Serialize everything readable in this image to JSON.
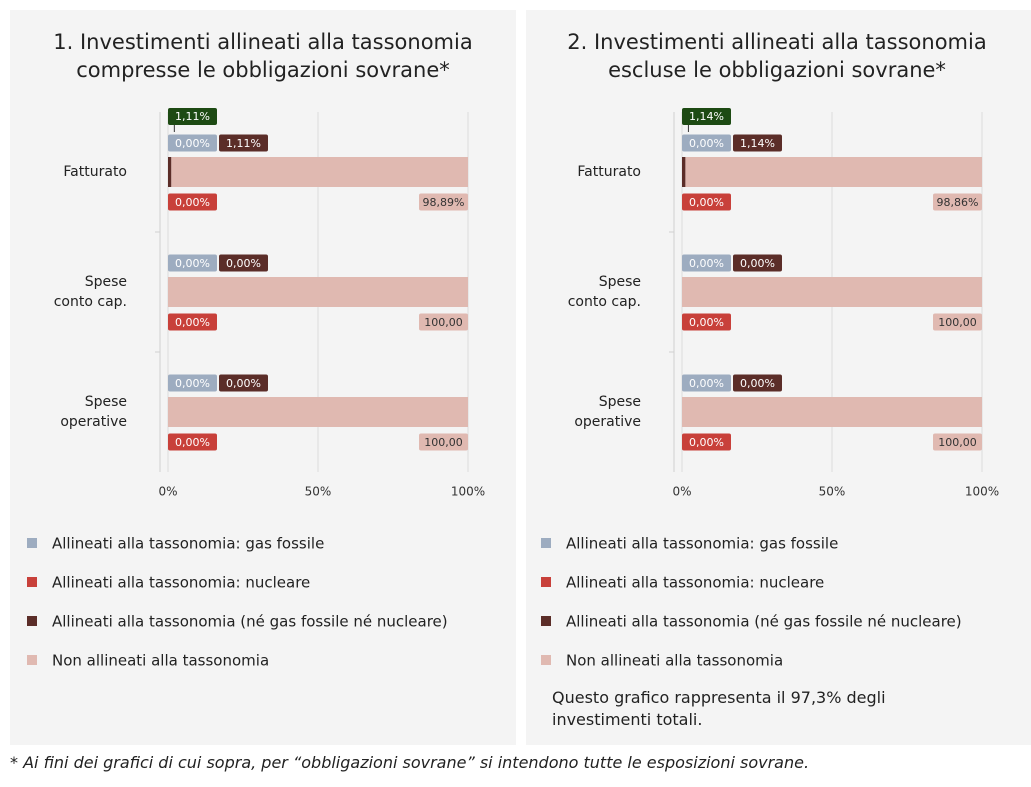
{
  "chart_data": [
    {
      "type": "stacked-bar-horizontal",
      "title": "1. Investimenti allineati alla tassonomia\ncompresse le obbligazioni sovrane*",
      "categories": [
        "Fatturato",
        "Spese\nconto cap.",
        "Spese\noperative"
      ],
      "series": [
        {
          "name": "Allineati alla tassonomia: gas fossile",
          "color": "#9dacc0",
          "values": [
            0,
            0,
            0
          ],
          "value_labels": [
            "0,00%",
            "0,00%",
            "0,00%"
          ]
        },
        {
          "name": "Allineati alla tassonomia: nucleare",
          "color": "#c8403a",
          "values": [
            0,
            0,
            0
          ],
          "value_labels": [
            "0,00%",
            "0,00%",
            "0,00%"
          ]
        },
        {
          "name": "Allineati alla tassonomia (né gas fossile né nucleare)",
          "color": "#5b2d28",
          "values": [
            1.11,
            0,
            0
          ],
          "value_labels": [
            "1,11%",
            "0,00%",
            "0,00%"
          ]
        },
        {
          "name": "Non allineati alla tassonomia",
          "color": "#e0b9b1",
          "values": [
            98.89,
            100,
            100
          ],
          "value_labels": [
            "98,89%",
            "100,00",
            "100,00"
          ]
        }
      ],
      "annotations": [
        {
          "category": "Fatturato",
          "value": 1.11,
          "label": "1,11%",
          "color": "#1d4a13"
        }
      ],
      "xlim": [
        0,
        100
      ],
      "xticks": [
        {
          "value": 0,
          "label": "0%"
        },
        {
          "value": 50,
          "label": "50%"
        },
        {
          "value": 100,
          "label": "100%"
        }
      ],
      "grid": true
    },
    {
      "type": "stacked-bar-horizontal",
      "title": "2. Investimenti allineati alla tassonomia\nescluse le obbligazioni sovrane*",
      "categories": [
        "Fatturato",
        "Spese\nconto cap.",
        "Spese\noperative"
      ],
      "series": [
        {
          "name": "Allineati alla tassonomia: gas fossile",
          "color": "#9dacc0",
          "values": [
            0,
            0,
            0
          ],
          "value_labels": [
            "0,00%",
            "0,00%",
            "0,00%"
          ]
        },
        {
          "name": "Allineati alla tassonomia: nucleare",
          "color": "#c8403a",
          "values": [
            0,
            0,
            0
          ],
          "value_labels": [
            "0,00%",
            "0,00%",
            "0,00%"
          ]
        },
        {
          "name": "Allineati alla tassonomia (né gas fossile né nucleare)",
          "color": "#5b2d28",
          "values": [
            1.14,
            0,
            0
          ],
          "value_labels": [
            "1,14%",
            "0,00%",
            "0,00%"
          ]
        },
        {
          "name": "Non allineati alla tassonomia",
          "color": "#e0b9b1",
          "values": [
            98.86,
            100,
            100
          ],
          "value_labels": [
            "98,86%",
            "100,00",
            "100,00"
          ]
        }
      ],
      "annotations": [
        {
          "category": "Fatturato",
          "value": 1.14,
          "label": "1,14%",
          "color": "#1d4a13"
        }
      ],
      "xlim": [
        0,
        100
      ],
      "xticks": [
        {
          "value": 0,
          "label": "0%"
        },
        {
          "value": 50,
          "label": "50%"
        },
        {
          "value": 100,
          "label": "100%"
        }
      ],
      "grid": true,
      "note": "Questo grafico rappresenta il 97,3% degli investimenti totali."
    }
  ],
  "footnote": "* Ai fini dei grafici di cui sopra, per “obbligazioni sovrane” si intendono tutte le esposizioni sovrane."
}
